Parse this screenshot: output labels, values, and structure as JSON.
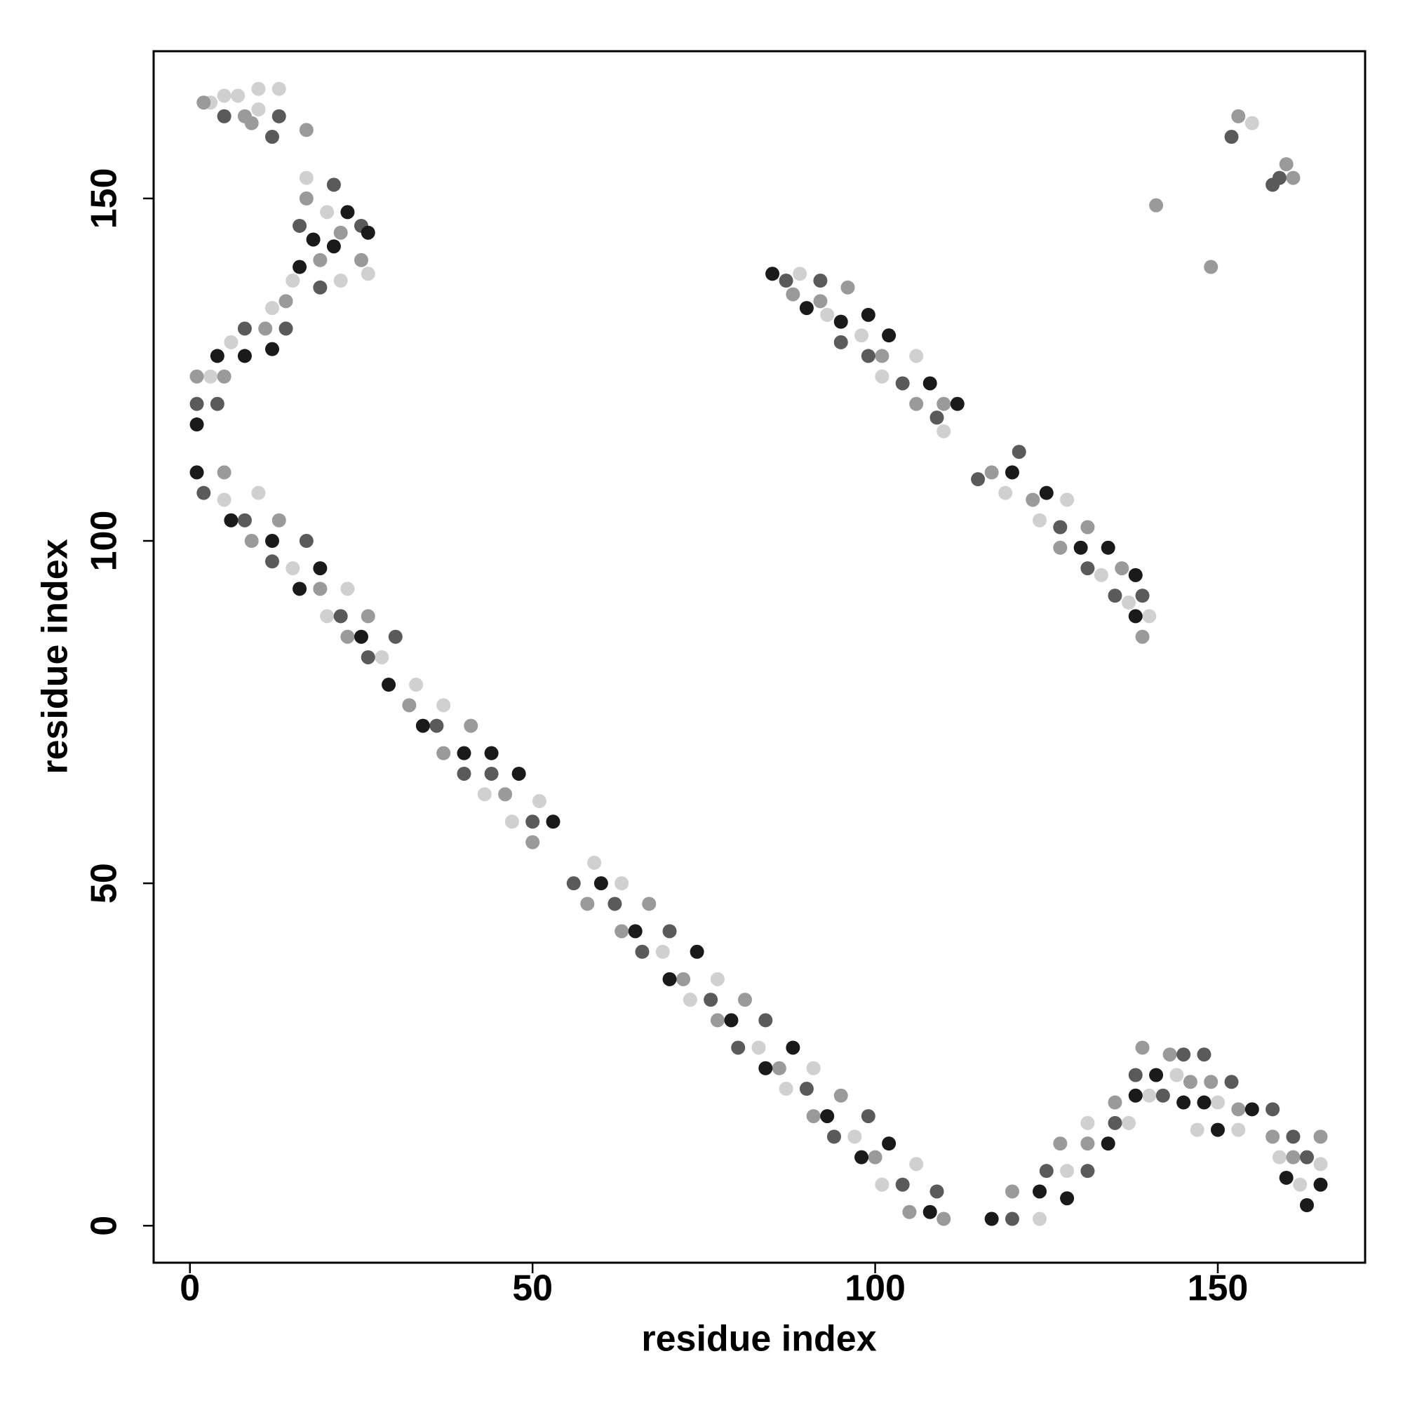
{
  "chart_data": {
    "type": "scatter",
    "xlabel": "residue index",
    "ylabel": "residue index",
    "xlim": [
      -5.3,
      171.5
    ],
    "ylim": [
      -5.4,
      171.5
    ],
    "xticks": [
      0,
      50,
      100,
      150
    ],
    "yticks": [
      0,
      50,
      100,
      150
    ],
    "series": [
      {
        "color": "#1a1a1a",
        "x": [
          1,
          6,
          12,
          16,
          19,
          25,
          29,
          34,
          40,
          44,
          48,
          53,
          60,
          65,
          70,
          74,
          79,
          84,
          88,
          93,
          98,
          102,
          108,
          1,
          4,
          8,
          12,
          16,
          18,
          21,
          23,
          26,
          85,
          90,
          95,
          99,
          102,
          108,
          112,
          120,
          125,
          130,
          134,
          138,
          138,
          117,
          124,
          128,
          134,
          138,
          141,
          145,
          148,
          150,
          155,
          160,
          163,
          165
        ],
        "y": [
          110,
          103,
          100,
          93,
          96,
          86,
          79,
          73,
          69,
          69,
          66,
          59,
          50,
          43,
          36,
          40,
          30,
          23,
          26,
          16,
          10,
          12,
          2,
          117,
          127,
          127,
          128,
          140,
          144,
          143,
          148,
          145,
          139,
          134,
          132,
          133,
          130,
          123,
          120,
          110,
          107,
          99,
          99,
          89,
          95,
          1,
          5,
          4,
          12,
          19,
          22,
          18,
          18,
          14,
          17,
          7,
          3,
          6
        ]
      },
      {
        "color": "#5a5a5a",
        "x": [
          2,
          8,
          12,
          17,
          22,
          26,
          30,
          36,
          40,
          44,
          50,
          56,
          62,
          66,
          70,
          76,
          80,
          84,
          90,
          94,
          99,
          104,
          109,
          1,
          4,
          8,
          14,
          16,
          19,
          21,
          25,
          5,
          12,
          13,
          87,
          92,
          95,
          99,
          104,
          109,
          115,
          121,
          127,
          131,
          135,
          139,
          120,
          125,
          131,
          135,
          138,
          142,
          145,
          148,
          152,
          158,
          161,
          163,
          152,
          158,
          159
        ],
        "y": [
          107,
          103,
          97,
          100,
          89,
          83,
          86,
          73,
          66,
          66,
          59,
          50,
          47,
          40,
          43,
          33,
          26,
          30,
          20,
          13,
          16,
          6,
          5,
          120,
          120,
          131,
          131,
          146,
          137,
          152,
          146,
          162,
          159,
          162,
          138,
          138,
          129,
          127,
          123,
          118,
          109,
          113,
          102,
          96,
          92,
          92,
          1,
          8,
          8,
          15,
          22,
          19,
          25,
          25,
          21,
          17,
          13,
          10,
          159,
          152,
          153
        ]
      },
      {
        "color": "#9a9a9a",
        "x": [
          5,
          9,
          13,
          19,
          23,
          26,
          32,
          37,
          41,
          46,
          50,
          58,
          63,
          67,
          72,
          77,
          81,
          86,
          91,
          95,
          100,
          105,
          110,
          1,
          5,
          11,
          14,
          17,
          19,
          22,
          25,
          8,
          9,
          17,
          2,
          88,
          92,
          96,
          101,
          106,
          110,
          117,
          123,
          127,
          131,
          136,
          139,
          120,
          127,
          131,
          135,
          139,
          143,
          146,
          149,
          153,
          158,
          161,
          165,
          141,
          149,
          153,
          160,
          161
        ],
        "y": [
          110,
          100,
          103,
          93,
          86,
          89,
          76,
          69,
          73,
          63,
          56,
          47,
          43,
          47,
          36,
          30,
          33,
          23,
          16,
          19,
          10,
          2,
          1,
          124,
          124,
          131,
          135,
          150,
          141,
          145,
          141,
          162,
          161,
          160,
          164,
          136,
          135,
          137,
          127,
          120,
          120,
          110,
          106,
          99,
          102,
          96,
          86,
          5,
          12,
          12,
          18,
          26,
          25,
          21,
          21,
          17,
          13,
          10,
          13,
          149,
          140,
          162,
          155,
          153
        ]
      },
      {
        "color": "#d0d0d0",
        "x": [
          5,
          10,
          15,
          20,
          23,
          28,
          33,
          37,
          43,
          47,
          51,
          59,
          63,
          69,
          73,
          77,
          83,
          87,
          91,
          97,
          101,
          106,
          3,
          6,
          12,
          15,
          17,
          20,
          22,
          26,
          3,
          5,
          7,
          10,
          13,
          10,
          89,
          93,
          98,
          101,
          106,
          110,
          119,
          124,
          128,
          133,
          137,
          140,
          124,
          128,
          131,
          137,
          140,
          144,
          147,
          150,
          153,
          159,
          162,
          165,
          155
        ],
        "y": [
          106,
          107,
          96,
          89,
          93,
          83,
          79,
          76,
          63,
          59,
          62,
          53,
          50,
          40,
          33,
          36,
          26,
          20,
          23,
          13,
          6,
          9,
          124,
          129,
          134,
          138,
          153,
          148,
          138,
          139,
          164,
          165,
          165,
          163,
          166,
          166,
          139,
          133,
          130,
          124,
          127,
          116,
          107,
          103,
          106,
          95,
          91,
          89,
          1,
          8,
          15,
          15,
          19,
          22,
          14,
          18,
          14,
          10,
          6,
          9,
          161
        ]
      }
    ]
  }
}
